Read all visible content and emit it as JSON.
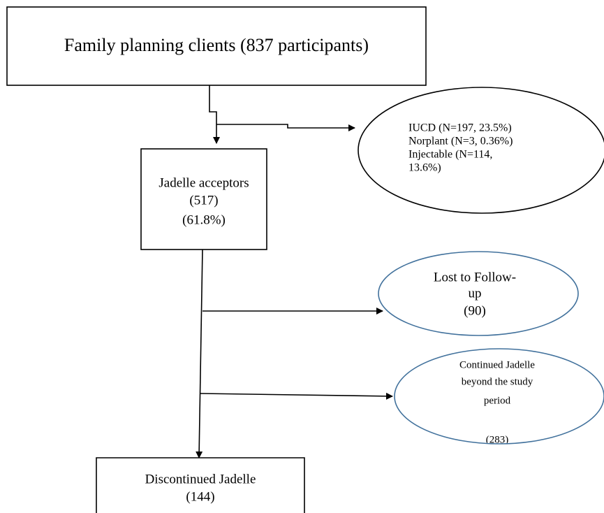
{
  "nodes": [
    {
      "label": "Family planning clients (837 participants)"
    },
    {
      "lines": [
        "Jadelle acceptors",
        "(517)",
        "(61.8%)"
      ]
    },
    {
      "lines": [
        "IUCD (N=197, 23.5%)",
        "Norplant (N=3, 0.36%)",
        "Injectable (N=114,",
        "13.6%)"
      ]
    },
    {
      "lines": [
        "Lost to Follow-",
        "up",
        "(90)"
      ]
    },
    {
      "lines": [
        "Continued Jadelle",
        "beyond the study",
        "period",
        "(283)"
      ]
    },
    {
      "lines": [
        "Discontinued Jadelle",
        "(144)"
      ]
    }
  ]
}
